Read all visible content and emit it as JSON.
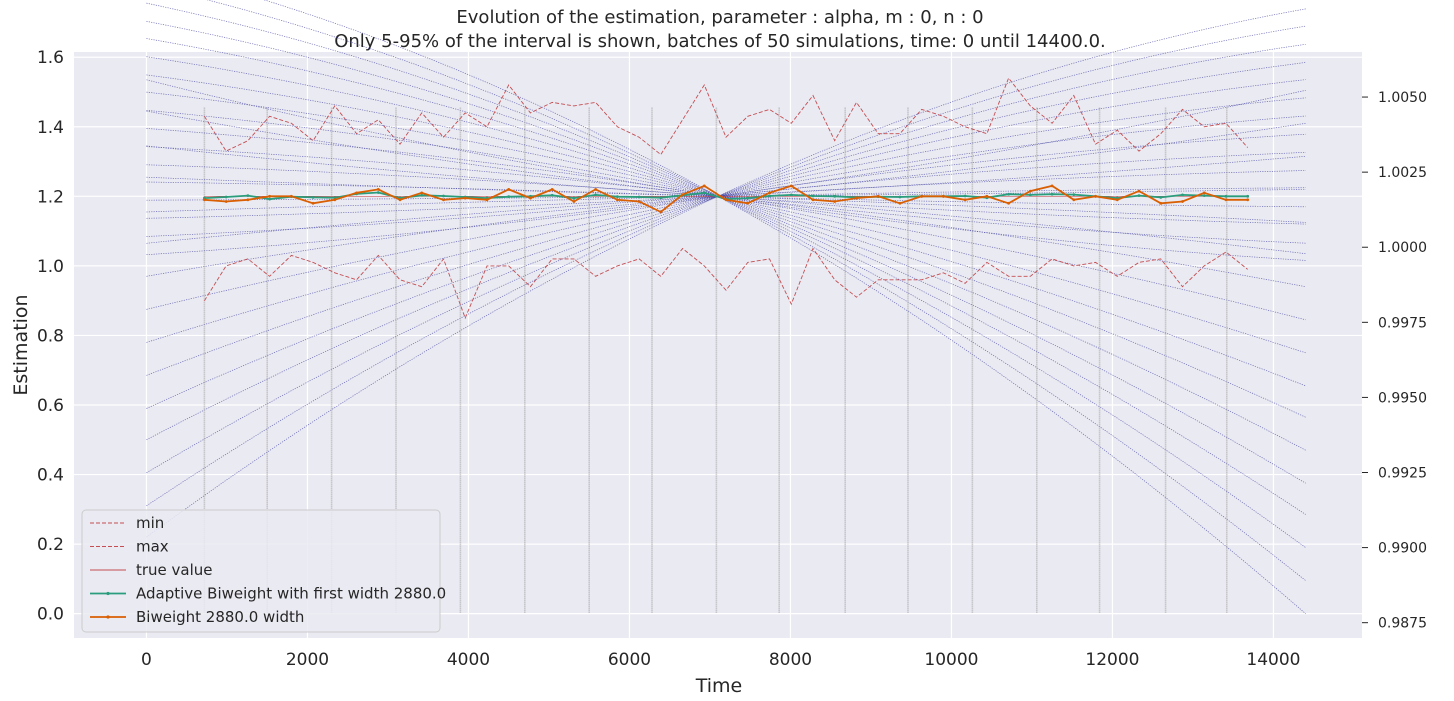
{
  "chart_data": {
    "type": "line",
    "title_line1": "Evolution of the estimation, parameter : alpha, m : 0, n : 0",
    "title_line2": "Only 5-95% of the interval is shown, batches of 50 simulations, time: 0 until 14400.0.",
    "xlabel": "Time",
    "ylabel": "Estimation",
    "xlim": [
      -900,
      15100
    ],
    "ylim": [
      -0.07,
      1.615
    ],
    "x_ticks": [
      0,
      2000,
      4000,
      6000,
      8000,
      10000,
      12000,
      14000
    ],
    "x_tick_labels": [
      "0",
      "2000",
      "4000",
      "6000",
      "8000",
      "10000",
      "12000",
      "14000"
    ],
    "y_ticks": [
      0.0,
      0.2,
      0.4,
      0.6,
      0.8,
      1.0,
      1.2,
      1.4,
      1.6
    ],
    "y_tick_labels": [
      "0.0",
      "0.2",
      "0.4",
      "0.6",
      "0.8",
      "1.0",
      "1.2",
      "1.4",
      "1.6"
    ],
    "y2lim": [
      0.98699,
      1.0065
    ],
    "y2_ticks": [
      0.9875,
      0.99,
      0.9925,
      0.995,
      0.9975,
      1.0,
      1.0025,
      1.005
    ],
    "y2_tick_labels": [
      "0.9875",
      "0.9900",
      "0.9925",
      "0.9950",
      "0.9975",
      "1.0000",
      "1.0025",
      "1.0050"
    ],
    "grid": true,
    "legend_position": "lower-left",
    "legend": [
      {
        "label": "min",
        "style": "dashed",
        "color": "#c44e52"
      },
      {
        "label": "max",
        "style": "dashed",
        "color": "#c44e52"
      },
      {
        "label": "true value",
        "style": "solid-thin",
        "color": "#c44e52"
      },
      {
        "label": "Adaptive Biweight with first width 2880.0",
        "style": "solid-marker",
        "color": "#2a9d7c"
      },
      {
        "label": "Biweight 2880.0 width",
        "style": "solid-marker",
        "color": "#d95f02"
      }
    ],
    "colors": {
      "background": "#eaeaf2",
      "grid": "#ffffff",
      "minmax": "#c44e52",
      "adaptive": "#2a9d7c",
      "biweight": "#d95f02",
      "kernel_curves": "#4040a0",
      "vertical_lines": "#9a9a9a"
    },
    "x": [
      720,
      990,
      1260,
      1530,
      1800,
      2070,
      2340,
      2610,
      2880,
      3150,
      3420,
      3690,
      3960,
      4230,
      4500,
      4770,
      5040,
      5310,
      5580,
      5850,
      6120,
      6390,
      6660,
      6930,
      7200,
      7470,
      7740,
      8010,
      8280,
      8550,
      8820,
      9090,
      9360,
      9630,
      9900,
      10170,
      10440,
      10710,
      10980,
      11250,
      11520,
      11790,
      12060,
      12330,
      12600,
      12870,
      13140,
      13410,
      13680
    ],
    "series": [
      {
        "name": "min",
        "values": [
          0.9,
          1.0,
          1.02,
          0.97,
          1.03,
          1.01,
          0.98,
          0.96,
          1.03,
          0.96,
          0.94,
          1.02,
          0.85,
          1.0,
          1.0,
          0.94,
          1.02,
          1.02,
          0.97,
          1.0,
          1.02,
          0.97,
          1.05,
          1.0,
          0.93,
          1.01,
          1.02,
          0.89,
          1.05,
          0.96,
          0.91,
          0.96,
          0.96,
          0.96,
          0.98,
          0.95,
          1.01,
          0.97,
          0.97,
          1.02,
          1.0,
          1.01,
          0.97,
          1.01,
          1.02,
          0.94,
          1.0,
          1.04,
          0.99
        ]
      },
      {
        "name": "max",
        "values": [
          1.43,
          1.33,
          1.36,
          1.43,
          1.41,
          1.36,
          1.46,
          1.38,
          1.42,
          1.35,
          1.44,
          1.37,
          1.44,
          1.4,
          1.52,
          1.44,
          1.47,
          1.46,
          1.47,
          1.4,
          1.37,
          1.32,
          1.42,
          1.52,
          1.37,
          1.43,
          1.45,
          1.41,
          1.49,
          1.36,
          1.47,
          1.38,
          1.38,
          1.45,
          1.43,
          1.4,
          1.38,
          1.54,
          1.46,
          1.41,
          1.49,
          1.35,
          1.39,
          1.33,
          1.38,
          1.45,
          1.4,
          1.41,
          1.34
        ]
      },
      {
        "name": "true value",
        "values": [
          1.2,
          1.2,
          1.2,
          1.2,
          1.2,
          1.2,
          1.2,
          1.2,
          1.2,
          1.2,
          1.2,
          1.2,
          1.2,
          1.2,
          1.2,
          1.2,
          1.2,
          1.2,
          1.2,
          1.2,
          1.2,
          1.2,
          1.2,
          1.2,
          1.2,
          1.2,
          1.2,
          1.2,
          1.2,
          1.2,
          1.2,
          1.2,
          1.2,
          1.2,
          1.2,
          1.2,
          1.2,
          1.2,
          1.2,
          1.2,
          1.2,
          1.2,
          1.2,
          1.2,
          1.2,
          1.2,
          1.2,
          1.2,
          1.2
        ]
      },
      {
        "name": "Adaptive Biweight with first width 2880.0",
        "values": [
          1.195,
          1.198,
          1.202,
          1.192,
          1.199,
          1.197,
          1.196,
          1.207,
          1.211,
          1.195,
          1.203,
          1.201,
          1.198,
          1.195,
          1.199,
          1.2,
          1.203,
          1.195,
          1.204,
          1.199,
          1.198,
          1.196,
          1.203,
          1.21,
          1.192,
          1.195,
          1.201,
          1.204,
          1.201,
          1.2,
          1.197,
          1.199,
          1.198,
          1.2,
          1.2,
          1.201,
          1.196,
          1.206,
          1.204,
          1.206,
          1.205,
          1.2,
          1.195,
          1.202,
          1.197,
          1.204,
          1.202,
          1.2,
          1.2
        ]
      },
      {
        "name": "Biweight 2880.0 width",
        "values": [
          1.19,
          1.185,
          1.19,
          1.2,
          1.2,
          1.18,
          1.19,
          1.21,
          1.22,
          1.19,
          1.21,
          1.19,
          1.195,
          1.19,
          1.22,
          1.195,
          1.22,
          1.185,
          1.22,
          1.19,
          1.185,
          1.155,
          1.205,
          1.23,
          1.19,
          1.18,
          1.21,
          1.23,
          1.19,
          1.185,
          1.195,
          1.2,
          1.18,
          1.2,
          1.2,
          1.19,
          1.2,
          1.18,
          1.215,
          1.23,
          1.19,
          1.2,
          1.19,
          1.215,
          1.18,
          1.185,
          1.21,
          1.19,
          1.19
        ]
      }
    ],
    "vertical_lines_x": [
      720,
      1500,
      2300,
      3100,
      3900,
      4700,
      5500,
      6280,
      7080,
      7860,
      8680,
      9460,
      10260,
      11060,
      11840,
      12660,
      13420
    ],
    "kernel_curves": {
      "x_start": 0,
      "x_end": 14400,
      "pivot_x": 7100,
      "pivot_y": 1.2,
      "start_values": [
        1.535,
        1.445,
        1.345,
        1.255,
        1.155,
        1.065,
        0.97,
        0.875,
        0.78,
        0.685,
        0.59,
        0.5,
        0.405,
        0.31,
        0.22
      ],
      "end_values": [
        0.0,
        0.095,
        0.19,
        0.285,
        0.375,
        0.47,
        0.565,
        0.655,
        0.75,
        0.845,
        0.94,
        1.035,
        1.125,
        1.22,
        1.315,
        1.41,
        1.505
      ]
    }
  }
}
